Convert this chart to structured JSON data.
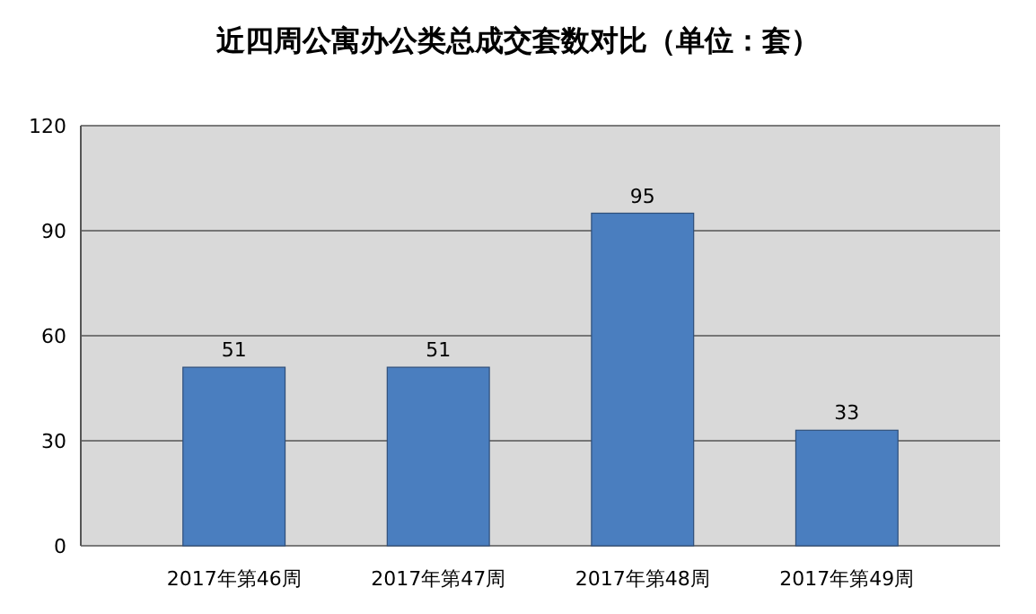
{
  "chart_data": {
    "type": "bar",
    "title": "近四周公寓办公类总成交套数对比（单位：套）",
    "categories": [
      "2017年第46周",
      "2017年第47周",
      "2017年第48周",
      "2017年第49周"
    ],
    "values": [
      51,
      51,
      95,
      33
    ],
    "color": "#4a7ebf",
    "ylim": [
      0,
      120
    ],
    "yticks": [
      0,
      30,
      60,
      90,
      120
    ],
    "grid": true,
    "data_labels": true
  }
}
